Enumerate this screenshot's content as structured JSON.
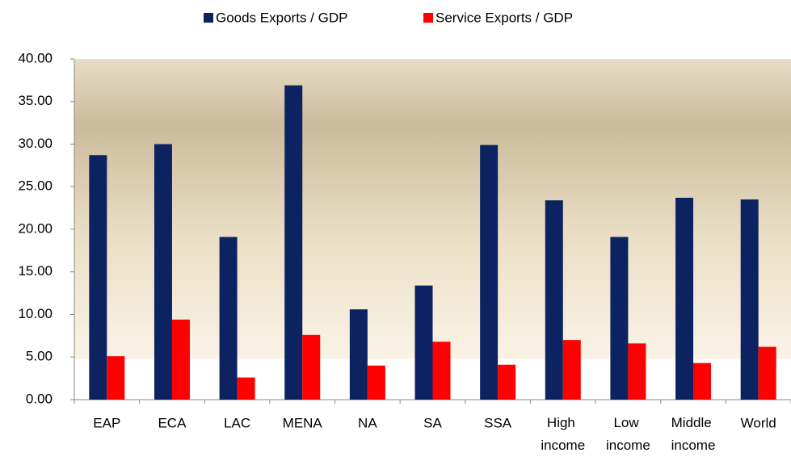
{
  "chart_data": {
    "type": "bar",
    "categories": [
      "EAP",
      "ECA",
      "LAC",
      "MENA",
      "NA",
      "SA",
      "SSA",
      "High income",
      "Low income",
      "Middle income",
      "World"
    ],
    "series": [
      {
        "name": "Goods Exports / GDP",
        "color": "#0d2260",
        "values": [
          28.7,
          30.0,
          19.1,
          36.9,
          10.6,
          13.4,
          29.9,
          23.4,
          19.1,
          23.7,
          23.5
        ]
      },
      {
        "name": "Service Exports / GDP",
        "color": "#ff0000",
        "values": [
          5.1,
          9.4,
          2.6,
          7.6,
          4.0,
          6.8,
          4.1,
          7.0,
          6.6,
          4.3,
          6.2
        ]
      }
    ],
    "ylim": [
      0,
      40
    ],
    "yticks": [
      {
        "value": 0,
        "label": "0.00"
      },
      {
        "value": 5,
        "label": "5.00"
      },
      {
        "value": 10,
        "label": "10.00"
      },
      {
        "value": 15,
        "label": "15.00"
      },
      {
        "value": 20,
        "label": "20.00"
      },
      {
        "value": 25,
        "label": "25.00"
      },
      {
        "value": 30,
        "label": "30.00"
      },
      {
        "value": 35,
        "label": "35.00"
      },
      {
        "value": 40,
        "label": "40.00"
      }
    ],
    "legend": "top"
  }
}
